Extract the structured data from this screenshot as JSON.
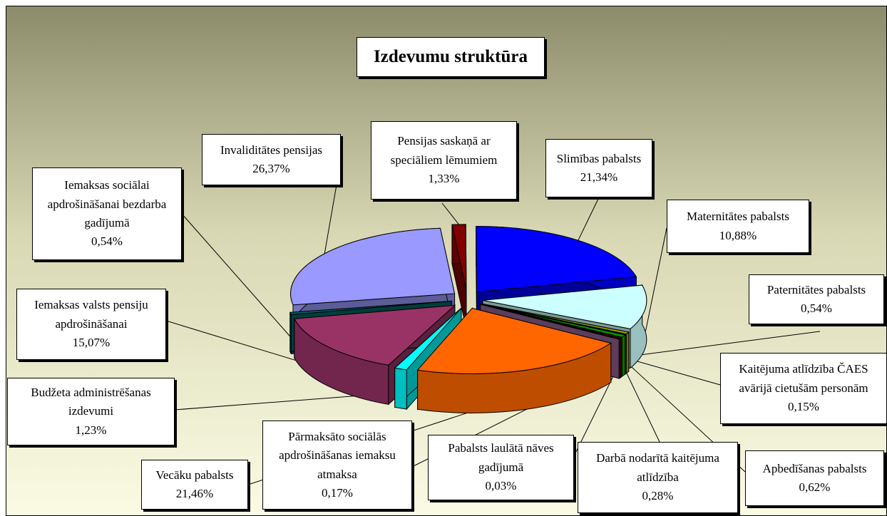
{
  "chart_data": {
    "type": "pie3d",
    "title": "Izdevumu struktūra",
    "categories": [
      "Pensijas saskaņā ar speciāliem lēmumiem",
      "Slimības pabalsts",
      "Maternitātes pabalsts",
      "Paternitātes pabalsts",
      "Kaitējuma atlīdzība ČAES avārijā cietušām personām",
      "Apbedīšanas pabalsts",
      "Darbā nodarītā kaitējuma atlīdzība",
      "Pabalsts laulātā nāves gadījumā",
      "Pārmaksāto sociālās apdrošināšanas iemaksu atmaksa",
      "Vecāku pabalsts",
      "Budžeta administrēšanas izdevumi",
      "Iemaksas valsts pensiju apdrošināšanai",
      "Iemaksas sociālai apdrošināšanai bezdarba gadījumā",
      "Invaliditātes pensijas"
    ],
    "values": [
      1.33,
      21.34,
      10.88,
      0.54,
      0.15,
      0.62,
      0.28,
      0.03,
      0.17,
      21.46,
      1.23,
      15.07,
      0.54,
      26.37
    ],
    "value_labels": [
      "1,33%",
      "21,34%",
      "10,88%",
      "0,54%",
      "0,15%",
      "0,62%",
      "0,28%",
      "0,03%",
      "0,17%",
      "21,46%",
      "1,23%",
      "15,07%",
      "0,54%",
      "26,37%"
    ],
    "colors": [
      "#800000",
      "#0000ff",
      "#ccffff",
      "#999900",
      "#cccc33",
      "#009900",
      "#990000",
      "#8080c0",
      "#996699",
      "#ff6600",
      "#00ffff",
      "#993366",
      "#006666",
      "#9999ff"
    ]
  }
}
